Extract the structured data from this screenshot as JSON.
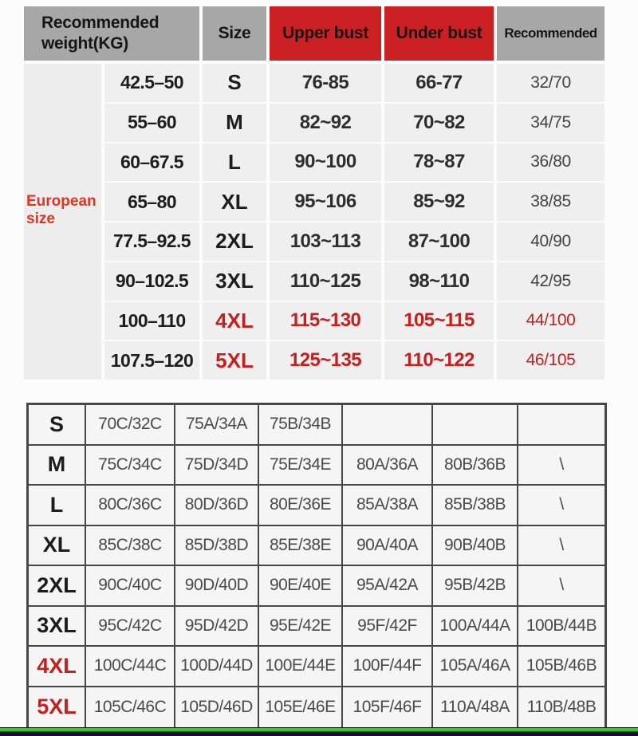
{
  "colors": {
    "header_gray": "#a8a7a8",
    "header_red": "#cb2125",
    "accent_red": "#e23420",
    "highlight_red": "#c32020",
    "green_bar": "#2ed60a",
    "footer_dark": "#141432"
  },
  "chart_data": [
    {
      "type": "table",
      "title": "Recommended size by weight and bust measurement",
      "side_label": "European size",
      "header": {
        "weight": "Recommended weight(KG)",
        "size": "Size",
        "upper": "Upper bust",
        "under": "Under bust",
        "recommended": "Recommended"
      },
      "rows": [
        {
          "weight": "42.5–50",
          "size": "S",
          "upper": "76-85",
          "under": "66-77",
          "rec": "32/70",
          "highlight": false
        },
        {
          "weight": "55–60",
          "size": "M",
          "upper": "82~92",
          "under": "70~82",
          "rec": "34/75",
          "highlight": false
        },
        {
          "weight": "60–67.5",
          "size": "L",
          "upper": "90~100",
          "under": "78~87",
          "rec": "36/80",
          "highlight": false
        },
        {
          "weight": "65–80",
          "size": "XL",
          "upper": "95~106",
          "under": "85~92",
          "rec": "38/85",
          "highlight": false
        },
        {
          "weight": "77.5–92.5",
          "size": "2XL",
          "upper": "103~113",
          "under": "87~100",
          "rec": "40/90",
          "highlight": false
        },
        {
          "weight": "90–102.5",
          "size": "3XL",
          "upper": "110~125",
          "under": "98~110",
          "rec": "42/95",
          "highlight": false
        },
        {
          "weight": "100–110",
          "size": "4XL",
          "upper": "115~130",
          "under": "105~115",
          "rec": "44/100",
          "highlight": true
        },
        {
          "weight": "107.5–120",
          "size": "5XL",
          "upper": "125~135",
          "under": "110~122",
          "rec": "46/105",
          "highlight": true
        }
      ]
    },
    {
      "type": "table",
      "title": "Cup size cross reference",
      "rows": [
        {
          "size": "S",
          "cells": [
            "70C/32C",
            "75A/34A",
            "75B/34B",
            "",
            "",
            ""
          ],
          "highlight": false
        },
        {
          "size": "M",
          "cells": [
            "75C/34C",
            "75D/34D",
            "75E/34E",
            "80A/36A",
            "80B/36B",
            "\\"
          ],
          "highlight": false
        },
        {
          "size": "L",
          "cells": [
            "80C/36C",
            "80D/36D",
            "80E/36E",
            "85A/38A",
            "85B/38B",
            "\\"
          ],
          "highlight": false
        },
        {
          "size": "XL",
          "cells": [
            "85C/38C",
            "85D/38D",
            "85E/38E",
            "90A/40A",
            "90B/40B",
            "\\"
          ],
          "highlight": false
        },
        {
          "size": "2XL",
          "cells": [
            "90C/40C",
            "90D/40D",
            "90E/40E",
            "95A/42A",
            "95B/42B",
            "\\"
          ],
          "highlight": false
        },
        {
          "size": "3XL",
          "cells": [
            "95C/42C",
            "95D/42D",
            "95E/42E",
            "95F/42F",
            "100A/44A",
            "100B/44B"
          ],
          "highlight": false
        },
        {
          "size": "4XL",
          "cells": [
            "100C/44C",
            "100D/44D",
            "100E/44E",
            "100F/44F",
            "105A/46A",
            "105B/46B"
          ],
          "highlight": true
        },
        {
          "size": "5XL",
          "cells": [
            "105C/46C",
            "105D/46D",
            "105E/46E",
            "105F/46F",
            "110A/48A",
            "110B/48B"
          ],
          "highlight": true
        }
      ]
    }
  ]
}
